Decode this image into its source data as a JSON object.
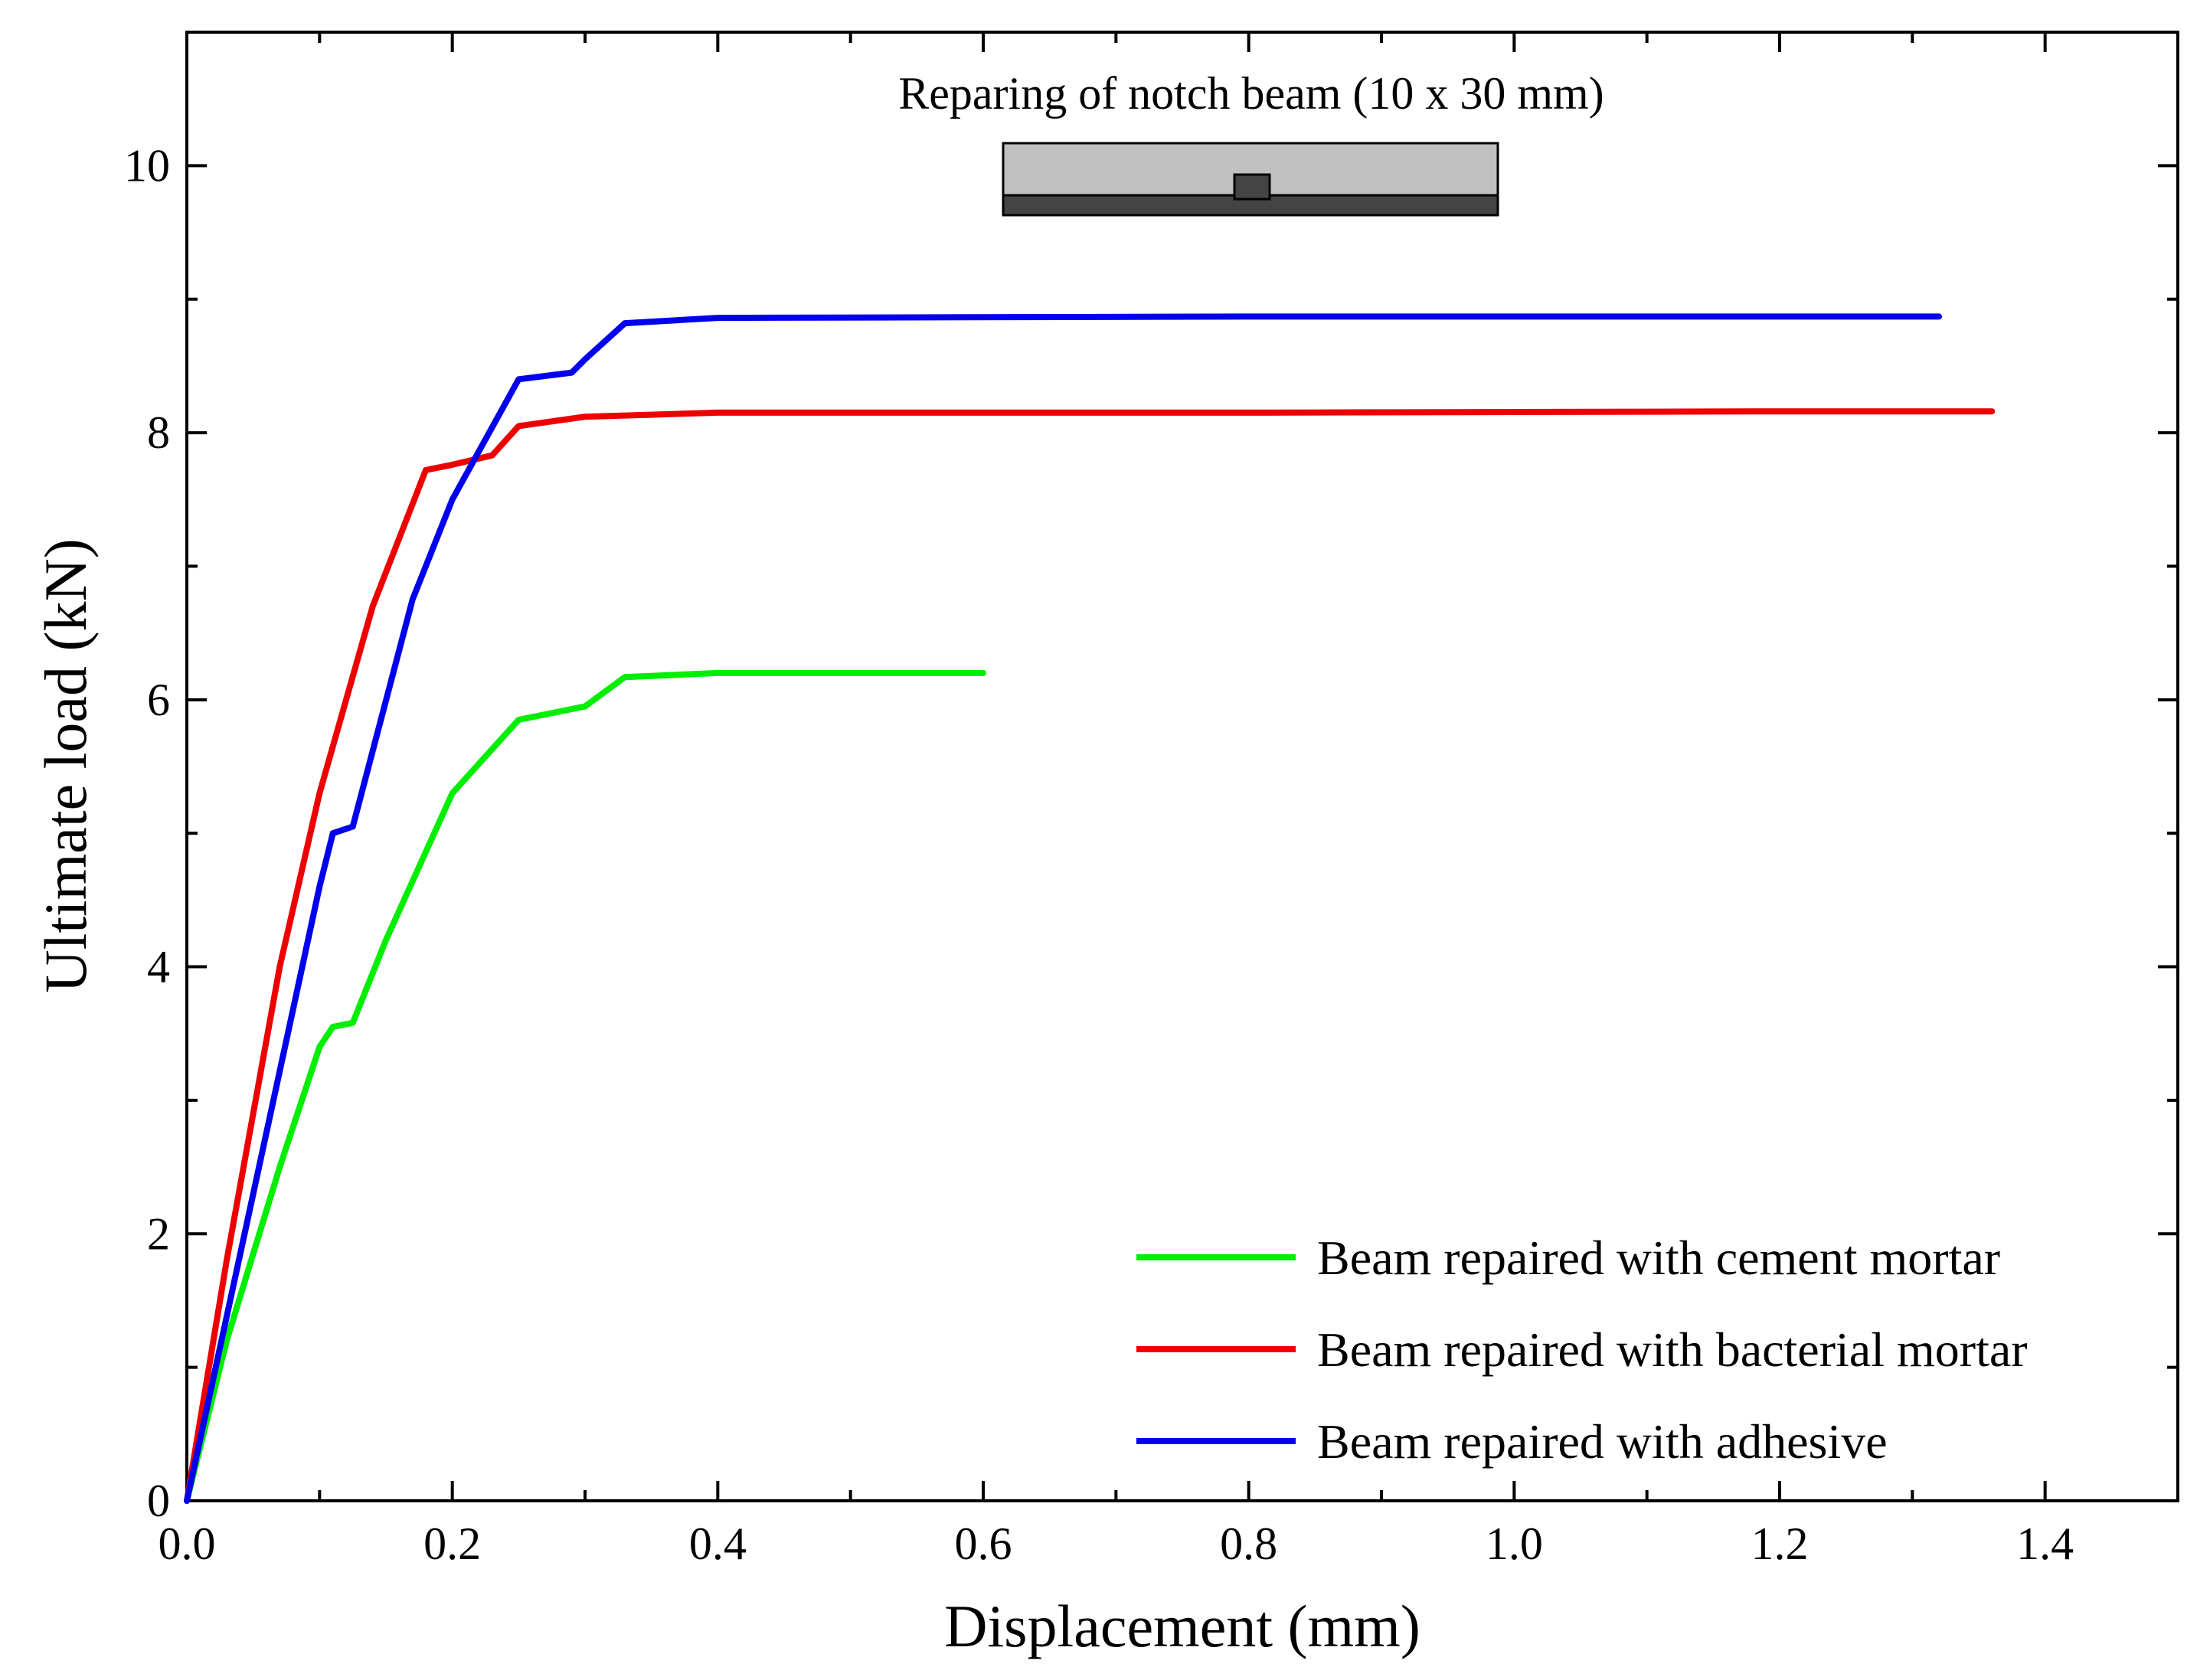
{
  "chart_data": {
    "type": "line",
    "xlabel": "Displacement (mm)",
    "ylabel": "Ultimate load (kN)",
    "xlim": [
      0,
      1.5
    ],
    "ylim": [
      0,
      11
    ],
    "x_ticks": [
      "0.0",
      "0.2",
      "0.4",
      "0.6",
      "0.8",
      "1.0",
      "1.2",
      "1.4"
    ],
    "y_ticks": [
      "0",
      "2",
      "4",
      "6",
      "8",
      "10"
    ],
    "grid": false,
    "legend_position": "bottom-right",
    "inset": {
      "title": "Reparing of notch beam (10 x 30 mm)"
    },
    "series": [
      {
        "name": "Beam repaired with cement mortar",
        "color": "#00ee00",
        "points": [
          [
            0,
            0
          ],
          [
            0.03,
            1.2
          ],
          [
            0.07,
            2.5
          ],
          [
            0.1,
            3.4
          ],
          [
            0.11,
            3.55
          ],
          [
            0.125,
            3.58
          ],
          [
            0.15,
            4.2
          ],
          [
            0.2,
            5.3
          ],
          [
            0.25,
            5.85
          ],
          [
            0.3,
            5.95
          ],
          [
            0.33,
            6.17
          ],
          [
            0.4,
            6.2
          ],
          [
            0.6,
            6.2
          ]
        ]
      },
      {
        "name": "Beam repaired with bacterial mortar",
        "color": "#ee0000",
        "points": [
          [
            0,
            0
          ],
          [
            0.03,
            1.8
          ],
          [
            0.07,
            4.0
          ],
          [
            0.1,
            5.3
          ],
          [
            0.14,
            6.7
          ],
          [
            0.18,
            7.72
          ],
          [
            0.2,
            7.76
          ],
          [
            0.23,
            7.83
          ],
          [
            0.25,
            8.05
          ],
          [
            0.3,
            8.12
          ],
          [
            0.4,
            8.15
          ],
          [
            0.8,
            8.15
          ],
          [
            1.2,
            8.16
          ],
          [
            1.36,
            8.16
          ]
        ]
      },
      {
        "name": "Beam repaired with adhesive",
        "color": "#0000ee",
        "points": [
          [
            0,
            0
          ],
          [
            0.05,
            2.3
          ],
          [
            0.1,
            4.6
          ],
          [
            0.11,
            5.0
          ],
          [
            0.125,
            5.05
          ],
          [
            0.17,
            6.75
          ],
          [
            0.2,
            7.5
          ],
          [
            0.25,
            8.4
          ],
          [
            0.29,
            8.45
          ],
          [
            0.3,
            8.55
          ],
          [
            0.33,
            8.82
          ],
          [
            0.4,
            8.86
          ],
          [
            0.8,
            8.87
          ],
          [
            1.32,
            8.87
          ]
        ]
      }
    ]
  }
}
